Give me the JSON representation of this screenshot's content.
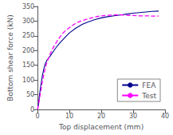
{
  "chart_data": {
    "type": "line",
    "xlabel": "Top displacement (mm)",
    "ylabel": "Bottom shear force (kN)",
    "xlim": [
      0,
      40
    ],
    "ylim": [
      0,
      350
    ],
    "xticks": [
      0,
      10,
      20,
      30,
      40
    ],
    "yticks": [
      0,
      50,
      100,
      150,
      200,
      250,
      300,
      350
    ],
    "grid": false,
    "legend": "lower right",
    "series": [
      {
        "name": "FEA",
        "color": "#00008B",
        "line_style": "solid",
        "x": [
          0,
          0.3,
          0.6,
          1.0,
          1.5,
          2.0,
          2.5,
          3.0,
          3.5,
          4.0,
          5.0,
          6.0,
          7.0,
          8.0,
          9.0,
          10.0,
          12.0,
          14.0,
          16.0,
          18.0,
          20.0,
          22.0,
          24.0,
          26.0,
          28.0,
          30.0,
          32.0,
          34.0,
          36.0,
          38.0
        ],
        "values": [
          0,
          20,
          50,
          80,
          115,
          140,
          158,
          168,
          175,
          182,
          198,
          213,
          226,
          238,
          249,
          260,
          276,
          289,
          298,
          305,
          311,
          315,
          318,
          321,
          324,
          327,
          329,
          331,
          333,
          334
        ]
      },
      {
        "name": "Test",
        "color": "#FF00FF",
        "line_style": "dashed",
        "x": [
          0,
          0.5,
          1.0,
          1.5,
          2.0,
          2.5,
          3.0,
          4.0,
          5.0,
          6.0,
          7.0,
          8.0,
          9.0,
          10.0,
          12.0,
          14.0,
          16.0,
          18.0,
          20.0,
          22.0,
          24.0,
          26.0,
          28.0,
          30.0,
          32.0,
          34.0,
          36.0,
          38.0
        ],
        "values": [
          0,
          30,
          62,
          95,
          120,
          145,
          162,
          190,
          212,
          230,
          246,
          260,
          270,
          278,
          293,
          302,
          308,
          314,
          318,
          320,
          321,
          321,
          320,
          319,
          318,
          318,
          317,
          317
        ]
      }
    ]
  }
}
